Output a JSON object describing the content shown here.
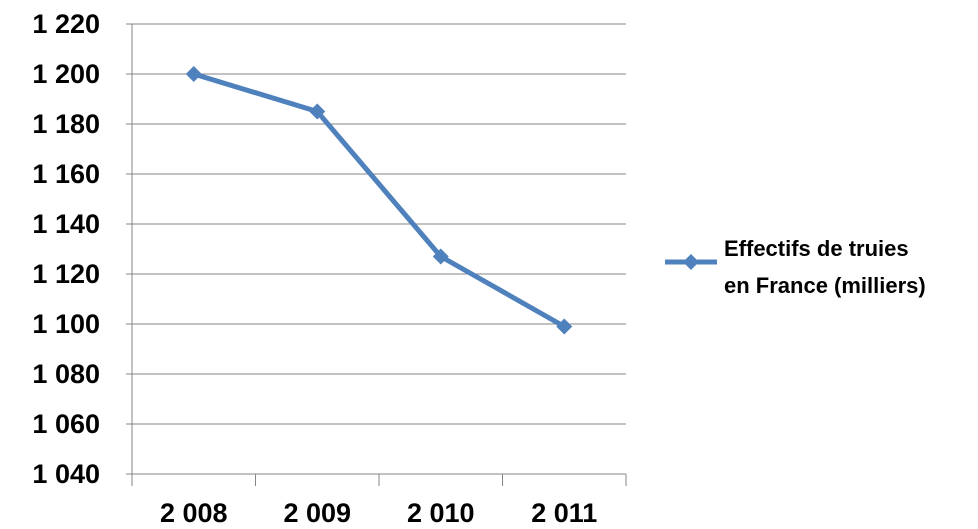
{
  "chart_data": {
    "type": "line",
    "title": "",
    "xlabel": "",
    "ylabel": "",
    "categories": [
      "2 008",
      "2 009",
      "2 010",
      "2 011"
    ],
    "y_ticks": [
      "1 040",
      "1 060",
      "1 080",
      "1 100",
      "1 120",
      "1 140",
      "1 160",
      "1 180",
      "1 200",
      "1 220"
    ],
    "ylim": [
      1040,
      1220
    ],
    "grid": true,
    "legend_position": "right",
    "series": [
      {
        "name": "Effectifs de truies en France (milliers)",
        "legend_lines": [
          "Effectifs de truies",
          "en France (milliers)"
        ],
        "values": [
          1200,
          1185,
          1127,
          1099
        ],
        "color": "#4F81BD",
        "marker": "diamond"
      }
    ]
  }
}
